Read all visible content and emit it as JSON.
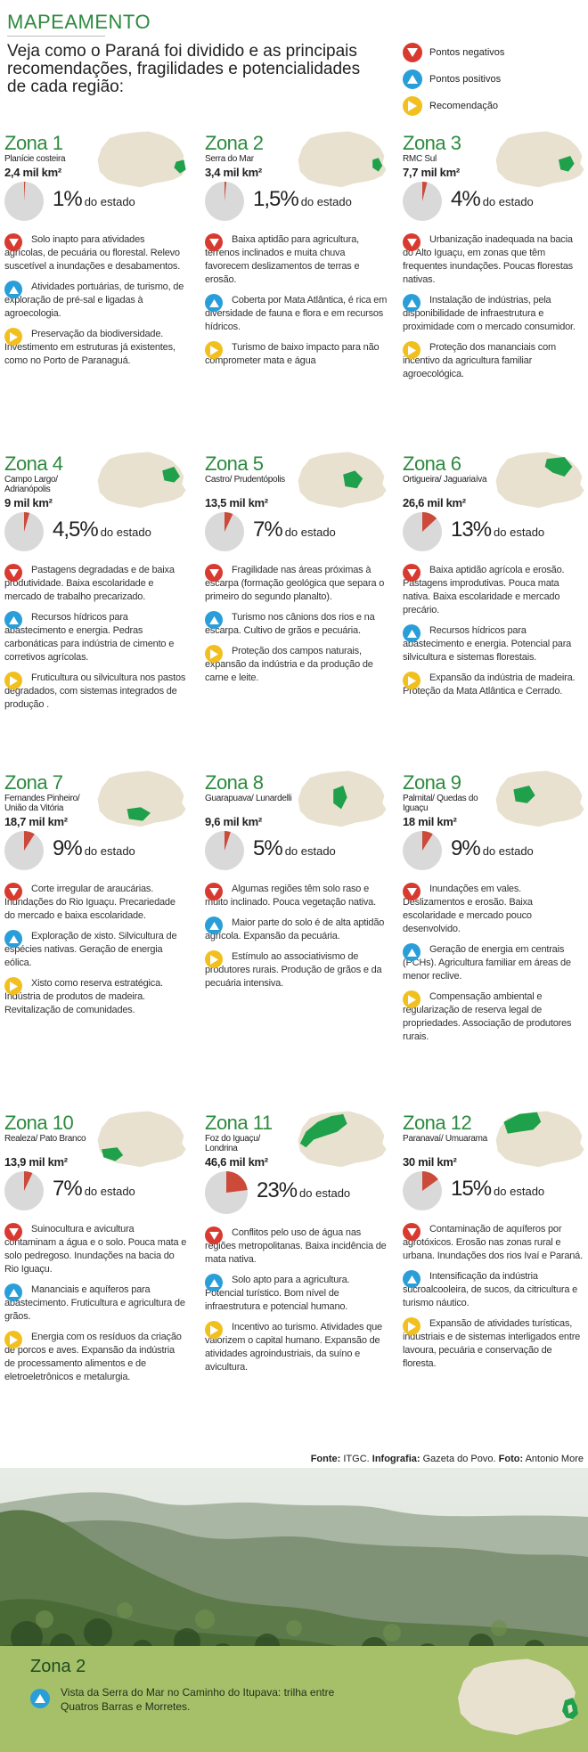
{
  "header": {
    "title": "MAPEAMENTO",
    "intro": "Veja como o Paraná foi dividido e as principais recomendações, fragilidades e potencialidades de cada região:"
  },
  "legend": {
    "negative": "Pontos negativos",
    "positive": "Pontos positivos",
    "recommendation": "Recomendação"
  },
  "colors": {
    "green_title": "#2d8a3e",
    "negative": "#d93a30",
    "positive": "#2a9ed8",
    "recommendation": "#f2c01e",
    "map_land": "#e9e1cf",
    "map_zone": "#1fa04a",
    "pie_slice": "#cc4a3a",
    "pie_bg": "#d9d9d9"
  },
  "zones": [
    {
      "name": "Zona 1",
      "place": "Planície costeira",
      "area": "2,4 mil km²",
      "pct_value": 1,
      "pct": "1%",
      "suffix": "do estado",
      "negative": "Solo inapto para atividades agrícolas, de pecuária ou florestal. Relevo suscetível a inundações e desabamentos.",
      "positive": "Atividades portuárias, de turismo, de exploração de pré-sal e ligadas à agroecologia.",
      "recommendation": "Preservação da biodiversidade. Investimento em estruturas já existentes, como no Porto de Paranaguá."
    },
    {
      "name": "Zona 2",
      "place": "Serra do Mar",
      "area": "3,4 mil km²",
      "pct_value": 1.5,
      "pct": "1,5%",
      "suffix": "do estado",
      "negative": "Baixa aptidão para agricultura, terrenos inclinados e muita chuva favorecem deslizamentos de terras e erosão.",
      "positive": "Coberta por Mata Atlântica, é rica em diversidade de fauna e flora e em recursos hídricos.",
      "recommendation": "Turismo de baixo impacto para não comprometer mata e água"
    },
    {
      "name": "Zona 3",
      "place": "RMC Sul",
      "area": "7,7 mil km²",
      "pct_value": 4,
      "pct": "4%",
      "suffix": "do estado",
      "negative": "Urbanização inadequada na bacia do Alto Iguaçu, em zonas que têm frequentes inundações. Poucas florestas nativas.",
      "positive": "Instalação de indústrias, pela disponibilidade de infraestrutura e proximidade com o mercado consumidor.",
      "recommendation": "Proteção dos mananciais com incentivo da agricultura familiar agroecológica."
    },
    {
      "name": "Zona 4",
      "place": "Campo Largo/ Adrianópolis",
      "area": "9 mil km²",
      "pct_value": 4.5,
      "pct": "4,5%",
      "suffix": "do estado",
      "negative": "Pastagens degradadas e de baixa produtividade. Baixa escolaridade e mercado de trabalho precarizado.",
      "positive": "Recursos hídricos para abastecimento e energia. Pedras carbonáticas para indústria de cimento e corretivos agrícolas.",
      "recommendation": "Fruticultura ou silvicultura nos pastos degradados, com sistemas integrados de produção ."
    },
    {
      "name": "Zona 5",
      "place": "Castro/ Prudentópolis",
      "area": "13,5 mil km²",
      "pct_value": 7,
      "pct": "7%",
      "suffix": "do estado",
      "negative": "Fragilidade nas áreas próximas à escarpa (formação geológica que separa o primeiro do segundo planalto).",
      "positive": "Turismo nos cânions dos rios e na escarpa. Cultivo de grãos e pecuária.",
      "recommendation": "Proteção dos campos naturais, expansão da indústria e da produção de carne e leite."
    },
    {
      "name": "Zona 6",
      "place": "Ortigueira/ Jaguariaíva",
      "area": "26,6 mil km²",
      "pct_value": 13,
      "pct": "13%",
      "suffix": "do estado",
      "negative": "Baixa aptidão agrícola e erosão. Pastagens improdutivas. Pouca mata nativa. Baixa escolaridade e mercado precário.",
      "positive": "Recursos hídricos para abastecimento e energia. Potencial para silvicultura e sistemas florestais.",
      "recommendation": "Expansão da indústria de madeira. Proteção da Mata Atlântica e Cerrado."
    },
    {
      "name": "Zona 7",
      "place": "Fernandes Pinheiro/ União da Vitória",
      "area": "18,7 mil km²",
      "pct_value": 9,
      "pct": "9%",
      "suffix": "do estado",
      "negative": "Corte irregular de araucárias. Inundações do Rio Iguaçu. Precariedade do mercado e baixa escolaridade.",
      "positive": "Exploração de xisto. Silvicultura de espécies nativas. Geração de energia eólica.",
      "recommendation": "Xisto como reserva estratégica. Indústria de produtos de madeira. Revitalização de comunidades."
    },
    {
      "name": "Zona 8",
      "place": "Guarapuava/ Lunardelli",
      "area": "9,6 mil km²",
      "pct_value": 5,
      "pct": "5%",
      "suffix": "do estado",
      "negative": "Algumas regiões têm solo raso e muito inclinado. Pouca vegetação nativa.",
      "positive": "Maior parte do solo é de alta aptidão agrícola. Expansão da pecuária.",
      "recommendation": "Estímulo ao associativismo de produtores rurais. Produção de grãos e da pecuária intensiva."
    },
    {
      "name": "Zona 9",
      "place": "Palmital/ Quedas do Iguaçu",
      "area": "18 mil km²",
      "pct_value": 9,
      "pct": "9%",
      "suffix": "do estado",
      "negative": "Inundações em vales. Deslizamentos e erosão. Baixa escolaridade e mercado pouco desenvolvido.",
      "positive": "Geração de energia em centrais (PCHs). Agricultura familiar em áreas de menor reclive.",
      "recommendation": "Compensação ambiental e regularização de reserva legal de propriedades. Associação de produtores rurais."
    },
    {
      "name": "Zona 10",
      "place": "Realeza/ Pato Branco",
      "area": "13,9 mil km²",
      "pct_value": 7,
      "pct": "7%",
      "suffix": "do estado",
      "negative": "Suinocultura e avicultura contaminam a água e o solo. Pouca mata e solo pedregoso. Inundações na bacia do Rio Iguaçu.",
      "positive": "Mananciais e aquíferos para abastecimento. Fruticultura e agricultura de grãos.",
      "recommendation": "Energia com os resíduos da criação de porcos e aves. Expansão da indústria de processamento alimentos e de eletroeletrônicos e metalurgia."
    },
    {
      "name": "Zona 11",
      "place": "Foz do Iguaçu/ Londrina",
      "area": "46,6 mil km²",
      "pct_value": 23,
      "pct": "23%",
      "suffix": "do estado",
      "negative": "Conflitos pelo uso de água nas regiões metropolitanas. Baixa incidência de mata nativa.",
      "positive": "Solo apto para a agricultura. Potencial turístico. Bom nível de infraestrutura e potencial humano.",
      "recommendation": "Incentivo ao turismo. Atividades que valorizem o capital humano. Expansão de atividades agroindustriais, da suíno e avicultura."
    },
    {
      "name": "Zona 12",
      "place": "Paranavaí/ Umuarama",
      "area": "30 mil km²",
      "pct_value": 15,
      "pct": "15%",
      "suffix": "do estado",
      "negative": "Contaminação de aquíferos por agrotóxicos. Erosão nas zonas rural e urbana. Inundações dos rios Ivaí e Paraná.",
      "positive": "Intensificação da indústria sucroalcooleira, de sucos, da citricultura e turismo náutico.",
      "recommendation": "Expansão de atividades turísticas, industriais e de sistemas interligados entre lavoura, pecuária e conservação de floresta."
    }
  ],
  "credits": {
    "source_label": "Fonte:",
    "source": "ITGC.",
    "infographic_label": "Infografia:",
    "infographic": "Gazeta do Povo.",
    "photo_label": "Foto:",
    "photo": "Antonio More"
  },
  "caption": {
    "title": "Zona 2",
    "text": "Vista da Serra do Mar no Caminho do Itupava: trilha entre Quatros Barras e Morretes."
  }
}
